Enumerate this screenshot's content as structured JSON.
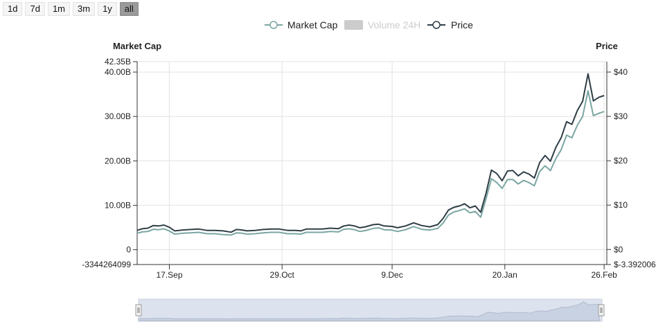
{
  "range_buttons": [
    {
      "label": "1d",
      "active": false
    },
    {
      "label": "7d",
      "active": false
    },
    {
      "label": "1m",
      "active": false
    },
    {
      "label": "3m",
      "active": false
    },
    {
      "label": "1y",
      "active": false
    },
    {
      "label": "all",
      "active": true
    }
  ],
  "colors": {
    "market_cap": "#7aa6a2",
    "price": "#2f3e46",
    "volume_disabled": "#cccccc",
    "grid": "#e2e2e2",
    "axis": "#333333",
    "navigator_fill": "#dde3ee",
    "navigator_line": "#b8c2d6"
  },
  "chart_data": {
    "type": "line",
    "left_axis_title": "Market Cap",
    "right_axis_title": "Price",
    "legend": [
      {
        "name": "Market Cap",
        "enabled": true,
        "style": "line-circle",
        "color": "#7aa6a2"
      },
      {
        "name": "Volume 24H",
        "enabled": false,
        "style": "box",
        "color": "#cccccc"
      },
      {
        "name": "Price",
        "enabled": true,
        "style": "line-circle",
        "color": "#2f3e46"
      }
    ],
    "legend_position": "top-center",
    "grid": true,
    "x_axis": {
      "type": "date",
      "range": [
        "2017-09-05",
        "2018-02-27"
      ],
      "ticks": [
        {
          "date": "2017-09-17",
          "label": "17.Sep"
        },
        {
          "date": "2017-10-29",
          "label": "29.Oct"
        },
        {
          "date": "2017-12-09",
          "label": "9.Dec"
        },
        {
          "date": "2018-01-20",
          "label": "20.Jan"
        },
        {
          "date": "2018-02-26",
          "label": "26.Feb"
        }
      ]
    },
    "y_left": {
      "ylim": [
        -3344264099,
        42350000000
      ],
      "ticks": [
        {
          "value": 42350000000,
          "label": "42.35B"
        },
        {
          "value": 40000000000,
          "label": "40.00B"
        },
        {
          "value": 30000000000,
          "label": "30.00B"
        },
        {
          "value": 20000000000,
          "label": "20.00B"
        },
        {
          "value": 10000000000,
          "label": "10.00B"
        },
        {
          "value": 0,
          "label": "0"
        },
        {
          "value": -3344264099,
          "label": "-3344264099"
        }
      ]
    },
    "y_right": {
      "ylim": [
        -3.392006,
        42.35
      ],
      "ticks": [
        {
          "value": 40,
          "label": "$40"
        },
        {
          "value": 30,
          "label": "$30"
        },
        {
          "value": 20,
          "label": "$20"
        },
        {
          "value": 10,
          "label": "$10"
        },
        {
          "value": 0,
          "label": "$0"
        },
        {
          "value": -3.392006,
          "label": "$-3.392006"
        }
      ]
    },
    "series": [
      {
        "name": "Market Cap",
        "axis": "left",
        "points": [
          [
            "2017-09-05",
            3700000000.0
          ],
          [
            "2017-09-07",
            4000000000.0
          ],
          [
            "2017-09-09",
            4100000000.0
          ],
          [
            "2017-09-11",
            4600000000.0
          ],
          [
            "2017-09-13",
            4500000000.0
          ],
          [
            "2017-09-15",
            4700000000.0
          ],
          [
            "2017-09-17",
            4200000000.0
          ],
          [
            "2017-09-19",
            3500000000.0
          ],
          [
            "2017-09-22",
            3700000000.0
          ],
          [
            "2017-09-25",
            3800000000.0
          ],
          [
            "2017-09-28",
            3900000000.0
          ],
          [
            "2017-10-01",
            3600000000.0
          ],
          [
            "2017-10-04",
            3600000000.0
          ],
          [
            "2017-10-07",
            3400000000.0
          ],
          [
            "2017-10-10",
            3300000000.0
          ],
          [
            "2017-10-12",
            3800000000.0
          ],
          [
            "2017-10-14",
            3700000000.0
          ],
          [
            "2017-10-16",
            3500000000.0
          ],
          [
            "2017-10-19",
            3600000000.0
          ],
          [
            "2017-10-22",
            3800000000.0
          ],
          [
            "2017-10-25",
            3900000000.0
          ],
          [
            "2017-10-28",
            3900000000.0
          ],
          [
            "2017-10-31",
            3600000000.0
          ],
          [
            "2017-11-03",
            3600000000.0
          ],
          [
            "2017-11-05",
            3500000000.0
          ],
          [
            "2017-11-07",
            3900000000.0
          ],
          [
            "2017-11-10",
            3900000000.0
          ],
          [
            "2017-11-13",
            3900000000.0
          ],
          [
            "2017-11-16",
            4100000000.0
          ],
          [
            "2017-11-19",
            4000000000.0
          ],
          [
            "2017-11-21",
            4600000000.0
          ],
          [
            "2017-11-23",
            4700000000.0
          ],
          [
            "2017-11-25",
            4500000000.0
          ],
          [
            "2017-11-27",
            4100000000.0
          ],
          [
            "2017-11-29",
            4300000000.0
          ],
          [
            "2017-12-02",
            4800000000.0
          ],
          [
            "2017-12-04",
            4900000000.0
          ],
          [
            "2017-12-06",
            4500000000.0
          ],
          [
            "2017-12-09",
            4400000000.0
          ],
          [
            "2017-12-11",
            4100000000.0
          ],
          [
            "2017-12-14",
            4500000000.0
          ],
          [
            "2017-12-17",
            5200000000.0
          ],
          [
            "2017-12-20",
            4600000000.0
          ],
          [
            "2017-12-23",
            4400000000.0
          ],
          [
            "2017-12-26",
            4800000000.0
          ],
          [
            "2017-12-28",
            6000000000.0
          ],
          [
            "2017-12-30",
            7800000000.0
          ],
          [
            "2018-01-01",
            8500000000.0
          ],
          [
            "2018-01-03",
            8800000000.0
          ],
          [
            "2018-01-05",
            9200000000.0
          ],
          [
            "2018-01-07",
            8300000000.0
          ],
          [
            "2018-01-09",
            8600000000.0
          ],
          [
            "2018-01-11",
            7300000000.0
          ],
          [
            "2018-01-13",
            11500000000.0
          ],
          [
            "2018-01-15",
            16000000000.0
          ],
          [
            "2018-01-17",
            15100000000.0
          ],
          [
            "2018-01-19",
            13800000000.0
          ],
          [
            "2018-01-21",
            15800000000.0
          ],
          [
            "2018-01-23",
            15800000000.0
          ],
          [
            "2018-01-25",
            14800000000.0
          ],
          [
            "2018-01-27",
            15600000000.0
          ],
          [
            "2018-01-29",
            15100000000.0
          ],
          [
            "2018-01-31",
            14400000000.0
          ],
          [
            "2018-02-02",
            17600000000.0
          ],
          [
            "2018-02-04",
            18900000000.0
          ],
          [
            "2018-02-06",
            17800000000.0
          ],
          [
            "2018-02-08",
            20500000000.0
          ],
          [
            "2018-02-10",
            22500000000.0
          ],
          [
            "2018-02-12",
            25800000000.0
          ],
          [
            "2018-02-14",
            25200000000.0
          ],
          [
            "2018-02-16",
            28000000000.0
          ],
          [
            "2018-02-18",
            30000000000.0
          ],
          [
            "2018-02-20",
            35800000000.0
          ],
          [
            "2018-02-22",
            30200000000.0
          ],
          [
            "2018-02-24",
            30700000000.0
          ],
          [
            "2018-02-26",
            31100000000.0
          ]
        ]
      },
      {
        "name": "Price",
        "axis": "right",
        "points": [
          [
            "2017-09-05",
            4.3
          ],
          [
            "2017-09-07",
            4.7
          ],
          [
            "2017-09-09",
            4.8
          ],
          [
            "2017-09-11",
            5.4
          ],
          [
            "2017-09-13",
            5.3
          ],
          [
            "2017-09-15",
            5.5
          ],
          [
            "2017-09-17",
            5.0
          ],
          [
            "2017-09-19",
            4.2
          ],
          [
            "2017-09-22",
            4.4
          ],
          [
            "2017-09-25",
            4.5
          ],
          [
            "2017-09-28",
            4.6
          ],
          [
            "2017-10-01",
            4.3
          ],
          [
            "2017-10-04",
            4.3
          ],
          [
            "2017-10-07",
            4.2
          ],
          [
            "2017-10-10",
            3.9
          ],
          [
            "2017-10-12",
            4.5
          ],
          [
            "2017-10-14",
            4.4
          ],
          [
            "2017-10-16",
            4.2
          ],
          [
            "2017-10-19",
            4.3
          ],
          [
            "2017-10-22",
            4.5
          ],
          [
            "2017-10-25",
            4.6
          ],
          [
            "2017-10-28",
            4.6
          ],
          [
            "2017-10-31",
            4.3
          ],
          [
            "2017-11-03",
            4.3
          ],
          [
            "2017-11-05",
            4.2
          ],
          [
            "2017-11-07",
            4.6
          ],
          [
            "2017-11-10",
            4.6
          ],
          [
            "2017-11-13",
            4.6
          ],
          [
            "2017-11-16",
            4.8
          ],
          [
            "2017-11-19",
            4.7
          ],
          [
            "2017-11-21",
            5.3
          ],
          [
            "2017-11-23",
            5.5
          ],
          [
            "2017-11-25",
            5.3
          ],
          [
            "2017-11-27",
            4.9
          ],
          [
            "2017-11-29",
            5.1
          ],
          [
            "2017-12-02",
            5.6
          ],
          [
            "2017-12-04",
            5.7
          ],
          [
            "2017-12-06",
            5.3
          ],
          [
            "2017-12-09",
            5.2
          ],
          [
            "2017-12-11",
            4.9
          ],
          [
            "2017-12-14",
            5.3
          ],
          [
            "2017-12-17",
            6.0
          ],
          [
            "2017-12-20",
            5.4
          ],
          [
            "2017-12-23",
            5.1
          ],
          [
            "2017-12-26",
            5.6
          ],
          [
            "2017-12-28",
            7.0
          ],
          [
            "2017-12-30",
            8.9
          ],
          [
            "2018-01-01",
            9.5
          ],
          [
            "2018-01-03",
            9.8
          ],
          [
            "2018-01-05",
            10.3
          ],
          [
            "2018-01-07",
            9.4
          ],
          [
            "2018-01-09",
            9.8
          ],
          [
            "2018-01-11",
            8.4
          ],
          [
            "2018-01-13",
            12.7
          ],
          [
            "2018-01-15",
            17.9
          ],
          [
            "2018-01-17",
            17.1
          ],
          [
            "2018-01-19",
            15.5
          ],
          [
            "2018-01-21",
            17.7
          ],
          [
            "2018-01-23",
            17.8
          ],
          [
            "2018-01-25",
            16.6
          ],
          [
            "2018-01-27",
            17.5
          ],
          [
            "2018-01-29",
            17.0
          ],
          [
            "2018-01-31",
            16.1
          ],
          [
            "2018-02-02",
            19.6
          ],
          [
            "2018-02-04",
            21.2
          ],
          [
            "2018-02-06",
            19.9
          ],
          [
            "2018-02-08",
            23.0
          ],
          [
            "2018-02-10",
            25.2
          ],
          [
            "2018-02-12",
            28.8
          ],
          [
            "2018-02-14",
            28.2
          ],
          [
            "2018-02-16",
            31.3
          ],
          [
            "2018-02-18",
            33.4
          ],
          [
            "2018-02-20",
            39.6
          ],
          [
            "2018-02-22",
            33.5
          ],
          [
            "2018-02-24",
            34.3
          ],
          [
            "2018-02-26",
            34.7
          ]
        ]
      }
    ]
  }
}
